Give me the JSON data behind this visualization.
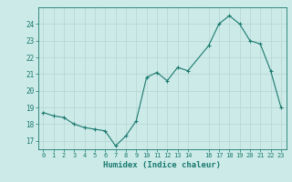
{
  "x": [
    0,
    1,
    2,
    3,
    4,
    5,
    6,
    7,
    8,
    9,
    10,
    11,
    12,
    13,
    14,
    16,
    17,
    18,
    19,
    20,
    21,
    22,
    23
  ],
  "y": [
    18.7,
    18.5,
    18.4,
    18.0,
    17.8,
    17.7,
    17.6,
    16.7,
    17.3,
    18.2,
    20.8,
    21.1,
    20.6,
    21.4,
    21.2,
    22.7,
    24.0,
    24.5,
    24.0,
    23.0,
    22.8,
    21.2,
    19.0
  ],
  "line_color": "#1a7a6e",
  "marker_color": "#1a7a6e",
  "bg_color": "#cceae8",
  "grid_color": "#b8d8d6",
  "axis_color": "#1a7a6e",
  "xlabel": "Humidex (Indice chaleur)",
  "xticks": [
    0,
    1,
    2,
    3,
    4,
    5,
    6,
    7,
    8,
    9,
    10,
    11,
    12,
    13,
    14,
    16,
    17,
    18,
    19,
    20,
    21,
    22,
    23
  ],
  "yticks": [
    17,
    18,
    19,
    20,
    21,
    22,
    23,
    24
  ],
  "ylim": [
    16.5,
    25.0
  ],
  "xlim": [
    -0.5,
    23.5
  ],
  "figsize": [
    3.2,
    2.0
  ],
  "dpi": 100
}
